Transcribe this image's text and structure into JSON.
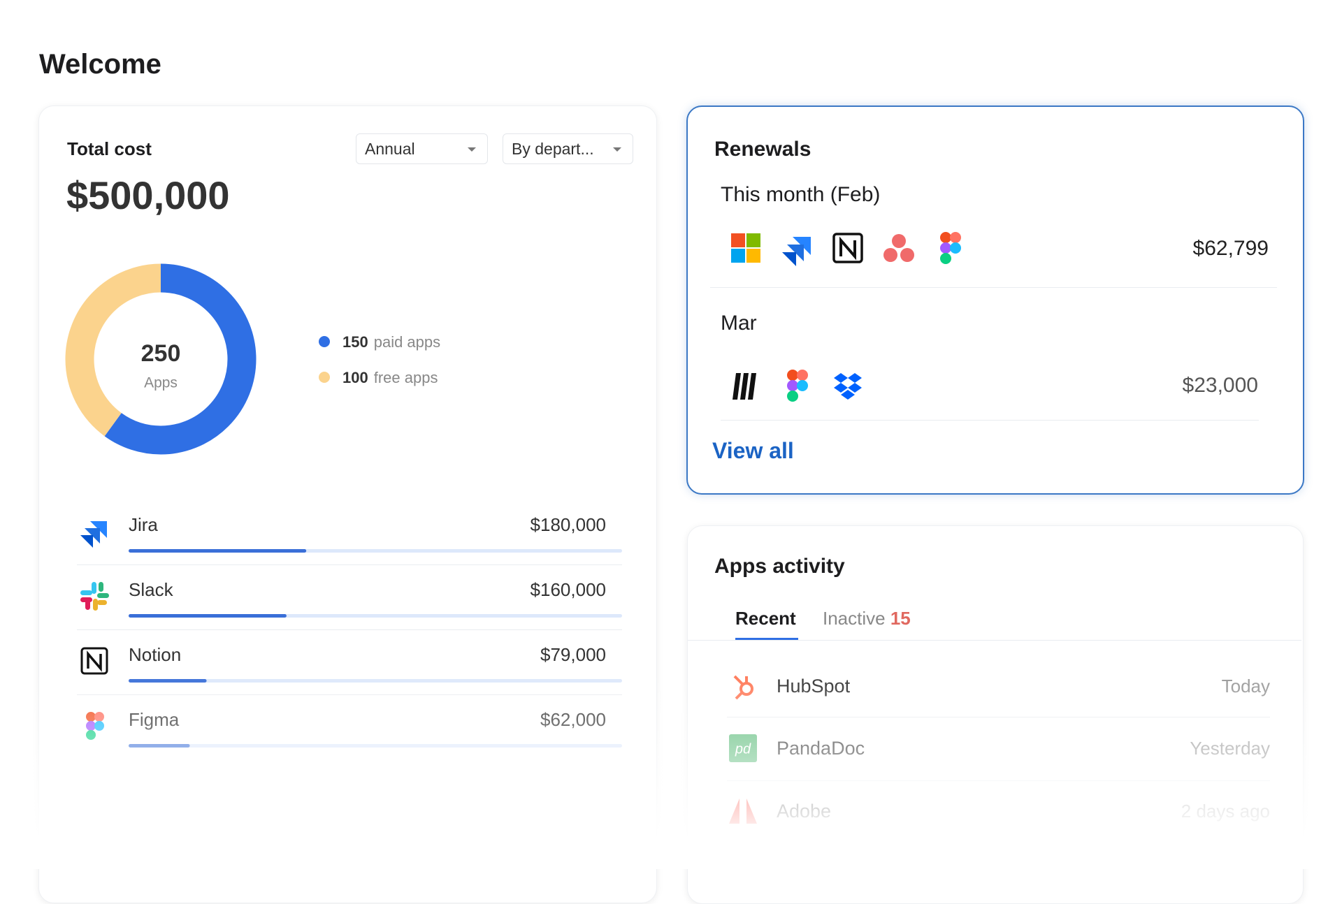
{
  "header": {
    "title": "Welcome"
  },
  "total_cost": {
    "title": "Total cost",
    "amount": 500000,
    "amount_label": "$500,000",
    "filters": [
      "Annual",
      "By depart..."
    ],
    "donut": {
      "total": 250,
      "total_label": "Apps",
      "segments": [
        {
          "value": 150,
          "label": "paid apps",
          "color": "#2f6fe4"
        },
        {
          "value": 100,
          "label": "free apps",
          "color": "#fbd38d"
        }
      ]
    },
    "apps": [
      {
        "name": "Jira",
        "cost": 180000,
        "cost_label": "$180,000"
      },
      {
        "name": "Slack",
        "cost": 160000,
        "cost_label": "$160,000"
      },
      {
        "name": "Notion",
        "cost": 79000,
        "cost_label": "$79,000"
      },
      {
        "name": "Figma",
        "cost": 62000,
        "cost_label": "$62,000"
      }
    ]
  },
  "renewals": {
    "title": "Renewals",
    "groups": [
      {
        "period": "This month (Feb)",
        "amount_label": "$62,799"
      },
      {
        "period": "Mar",
        "amount_label": "$23,000"
      }
    ],
    "link": "View all"
  },
  "activity": {
    "title": "Apps activity",
    "tabs": [
      {
        "label": "Recent"
      },
      {
        "label": "Inactive",
        "count": 15
      }
    ],
    "rows": [
      {
        "name": "HubSpot",
        "time": "Today"
      },
      {
        "name": "PandaDoc",
        "time": "Yesterday"
      },
      {
        "name": "Adobe",
        "time": "2 days ago"
      }
    ]
  }
}
